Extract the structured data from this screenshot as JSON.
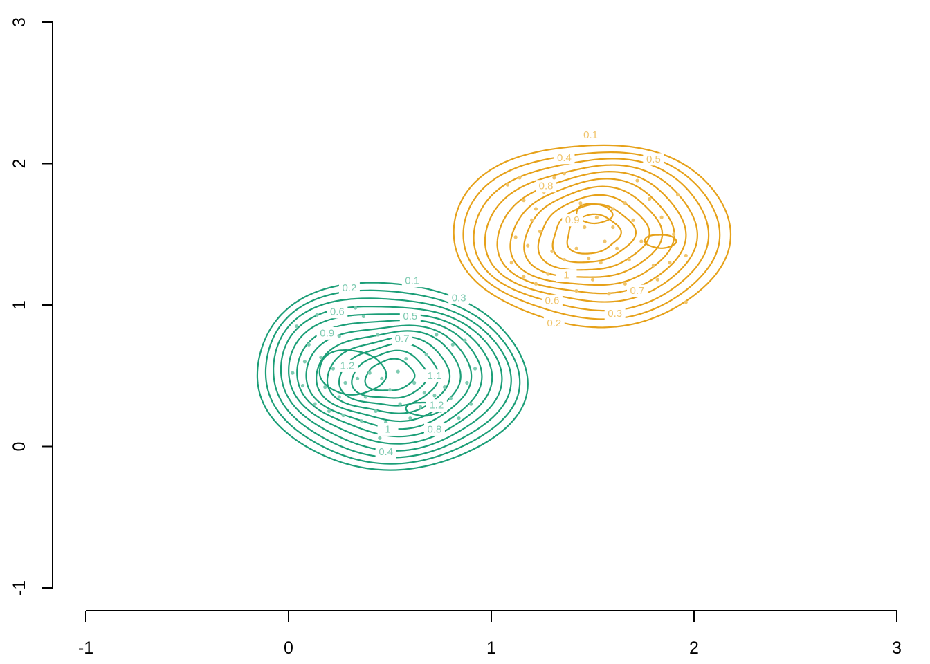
{
  "chart_data": {
    "type": "contour",
    "title": "",
    "xlabel": "",
    "ylabel": "",
    "xlim": [
      -1,
      3
    ],
    "ylim": [
      -1,
      3
    ],
    "x_ticks": [
      -1,
      0,
      1,
      2,
      3
    ],
    "y_ticks": [
      -1,
      0,
      1,
      2,
      3
    ],
    "x_tick_labels": [
      "-1",
      "0",
      "1",
      "2",
      "3"
    ],
    "y_tick_labels": [
      "-1",
      "0",
      "1",
      "2",
      "3"
    ],
    "grid": false,
    "legend": "none",
    "series": [
      {
        "color": "#1b9e77",
        "point_color": "#7fcbb2",
        "center": [
          0.5,
          0.5
        ],
        "levels": [
          0.1,
          0.2,
          0.3,
          0.4,
          0.5,
          0.6,
          0.7,
          0.8,
          0.9,
          1.0,
          1.1,
          1.2
        ],
        "labeled_levels": [
          {
            "text": "0.1",
            "x": 0.61,
            "y": 1.17
          },
          {
            "text": "0.2",
            "x": 0.3,
            "y": 1.12
          },
          {
            "text": "0.3",
            "x": 0.84,
            "y": 1.05
          },
          {
            "text": "0.6",
            "x": 0.24,
            "y": 0.95
          },
          {
            "text": "0.5",
            "x": 0.6,
            "y": 0.92
          },
          {
            "text": "0.9",
            "x": 0.19,
            "y": 0.8
          },
          {
            "text": "0.7",
            "x": 0.56,
            "y": 0.76
          },
          {
            "text": "1.2",
            "x": 0.29,
            "y": 0.57
          },
          {
            "text": "1.1",
            "x": 0.72,
            "y": 0.5
          },
          {
            "text": "1.2",
            "x": 0.73,
            "y": 0.29
          },
          {
            "text": "1",
            "x": 0.49,
            "y": 0.12
          },
          {
            "text": "0.8",
            "x": 0.72,
            "y": 0.12
          },
          {
            "text": "0.4",
            "x": 0.48,
            "y": -0.04
          }
        ],
        "points": [
          [
            0.04,
            0.85
          ],
          [
            0.14,
            0.93
          ],
          [
            0.19,
            0.83
          ],
          [
            0.25,
            0.78
          ],
          [
            0.33,
            0.98
          ],
          [
            0.37,
            0.92
          ],
          [
            0.44,
            0.79
          ],
          [
            0.56,
            0.73
          ],
          [
            0.73,
            0.79
          ],
          [
            0.81,
            0.72
          ],
          [
            0.87,
            0.75
          ],
          [
            0.1,
            0.72
          ],
          [
            0.16,
            0.63
          ],
          [
            0.22,
            0.55
          ],
          [
            0.28,
            0.45
          ],
          [
            0.34,
            0.48
          ],
          [
            0.4,
            0.52
          ],
          [
            0.46,
            0.48
          ],
          [
            0.5,
            0.4
          ],
          [
            0.54,
            0.53
          ],
          [
            0.62,
            0.45
          ],
          [
            0.67,
            0.38
          ],
          [
            0.72,
            0.36
          ],
          [
            0.77,
            0.42
          ],
          [
            0.8,
            0.34
          ],
          [
            0.88,
            0.45
          ],
          [
            0.9,
            0.3
          ],
          [
            0.07,
            0.43
          ],
          [
            0.13,
            0.3
          ],
          [
            0.2,
            0.25
          ],
          [
            0.27,
            0.22
          ],
          [
            0.36,
            0.18
          ],
          [
            0.43,
            0.25
          ],
          [
            0.48,
            0.17
          ],
          [
            0.6,
            0.2
          ],
          [
            0.68,
            0.15
          ],
          [
            0.75,
            0.25
          ],
          [
            0.84,
            0.2
          ],
          [
            0.92,
            0.55
          ],
          [
            0.02,
            0.52
          ],
          [
            0.3,
            0.6
          ],
          [
            0.58,
            0.62
          ],
          [
            0.68,
            0.65
          ],
          [
            0.25,
            0.35
          ],
          [
            0.38,
            0.35
          ],
          [
            0.45,
            0.06
          ],
          [
            0.55,
            0.3
          ],
          [
            0.65,
            0.28
          ],
          [
            0.08,
            0.6
          ],
          [
            0.18,
            0.42
          ]
        ]
      },
      {
        "color": "#e6a119",
        "point_color": "#f0c46b",
        "center": [
          1.5,
          1.5
        ],
        "levels": [
          0.1,
          0.2,
          0.3,
          0.4,
          0.5,
          0.6,
          0.7,
          0.8,
          0.9,
          1.0
        ],
        "labeled_levels": [
          {
            "text": "0.1",
            "x": 1.49,
            "y": 2.2
          },
          {
            "text": "0.4",
            "x": 1.36,
            "y": 2.04
          },
          {
            "text": "0.5",
            "x": 1.8,
            "y": 2.03
          },
          {
            "text": "0.8",
            "x": 1.27,
            "y": 1.84
          },
          {
            "text": "0.9",
            "x": 1.4,
            "y": 1.6
          },
          {
            "text": "1",
            "x": 1.37,
            "y": 1.21
          },
          {
            "text": "0.7",
            "x": 1.72,
            "y": 1.1
          },
          {
            "text": "0.6",
            "x": 1.3,
            "y": 1.03
          },
          {
            "text": "0.3",
            "x": 1.61,
            "y": 0.94
          },
          {
            "text": "0.2",
            "x": 1.31,
            "y": 0.87
          }
        ],
        "points": [
          [
            1.08,
            1.85
          ],
          [
            1.16,
            1.74
          ],
          [
            1.22,
            1.68
          ],
          [
            1.26,
            1.8
          ],
          [
            1.31,
            1.9
          ],
          [
            1.36,
            1.93
          ],
          [
            1.44,
            1.72
          ],
          [
            1.52,
            1.62
          ],
          [
            1.6,
            1.55
          ],
          [
            1.66,
            1.72
          ],
          [
            1.72,
            1.88
          ],
          [
            1.78,
            1.75
          ],
          [
            1.84,
            1.62
          ],
          [
            1.9,
            1.5
          ],
          [
            1.96,
            1.35
          ],
          [
            1.12,
            1.48
          ],
          [
            1.18,
            1.42
          ],
          [
            1.24,
            1.52
          ],
          [
            1.3,
            1.38
          ],
          [
            1.36,
            1.32
          ],
          [
            1.42,
            1.4
          ],
          [
            1.48,
            1.33
          ],
          [
            1.54,
            1.3
          ],
          [
            1.62,
            1.4
          ],
          [
            1.68,
            1.32
          ],
          [
            1.74,
            1.45
          ],
          [
            1.8,
            1.28
          ],
          [
            1.88,
            1.3
          ],
          [
            1.1,
            1.3
          ],
          [
            1.16,
            1.2
          ],
          [
            1.22,
            1.15
          ],
          [
            1.28,
            1.22
          ],
          [
            1.35,
            1.18
          ],
          [
            1.42,
            1.1
          ],
          [
            1.5,
            1.18
          ],
          [
            1.58,
            1.08
          ],
          [
            1.66,
            1.15
          ],
          [
            1.74,
            1.1
          ],
          [
            1.82,
            1.18
          ],
          [
            1.96,
            1.02
          ],
          [
            1.2,
            1.6
          ],
          [
            1.46,
            1.55
          ],
          [
            1.56,
            1.45
          ],
          [
            1.7,
            1.6
          ],
          [
            1.14,
            1.9
          ],
          [
            1.28,
            1.05
          ],
          [
            1.92,
            1.78
          ],
          [
            1.6,
            1.68
          ]
        ]
      }
    ]
  }
}
